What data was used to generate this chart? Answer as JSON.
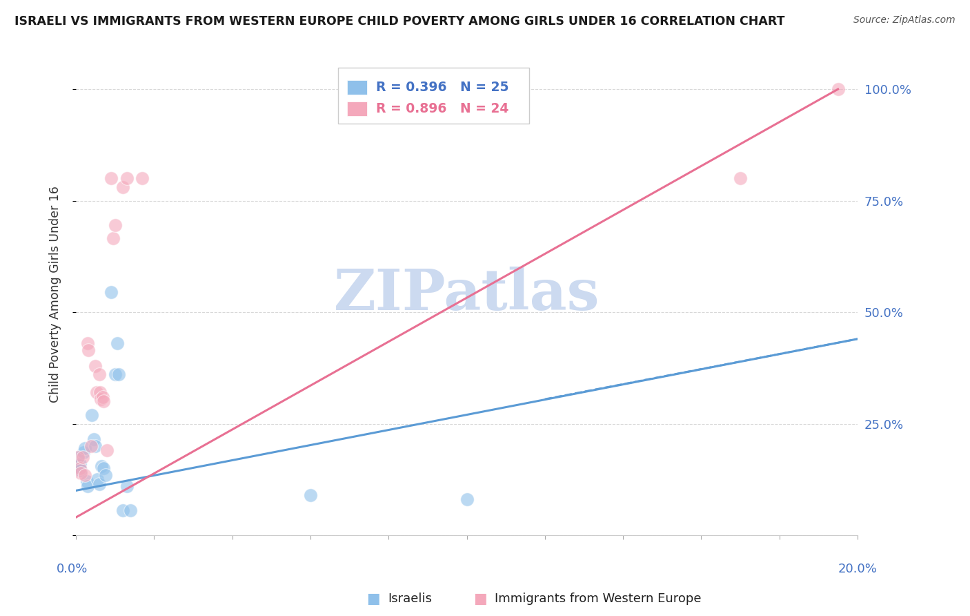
{
  "title": "ISRAELI VS IMMIGRANTS FROM WESTERN EUROPE CHILD POVERTY AMONG GIRLS UNDER 16 CORRELATION CHART",
  "source": "Source: ZipAtlas.com",
  "ylabel": "Child Poverty Among Girls Under 16",
  "y_ticks": [
    0.0,
    0.25,
    0.5,
    0.75,
    1.0
  ],
  "y_tick_labels": [
    "",
    "25.0%",
    "50.0%",
    "75.0%",
    "100.0%"
  ],
  "legend_blue_r": "R = 0.396",
  "legend_blue_n": "N = 25",
  "legend_pink_r": "R = 0.896",
  "legend_pink_n": "N = 24",
  "legend_label_blue": "Israelis",
  "legend_label_pink": "Immigrants from Western Europe",
  "watermark": "ZIPatlas",
  "blue_scatter": [
    [
      0.05,
      0.175
    ],
    [
      0.07,
      0.155
    ],
    [
      0.1,
      0.16
    ],
    [
      0.12,
      0.145
    ],
    [
      0.2,
      0.185
    ],
    [
      0.22,
      0.195
    ],
    [
      0.28,
      0.12
    ],
    [
      0.3,
      0.11
    ],
    [
      0.4,
      0.27
    ],
    [
      0.45,
      0.215
    ],
    [
      0.5,
      0.2
    ],
    [
      0.55,
      0.125
    ],
    [
      0.6,
      0.115
    ],
    [
      0.65,
      0.155
    ],
    [
      0.7,
      0.15
    ],
    [
      0.75,
      0.135
    ],
    [
      0.9,
      0.545
    ],
    [
      1.0,
      0.36
    ],
    [
      1.05,
      0.43
    ],
    [
      1.1,
      0.36
    ],
    [
      1.2,
      0.055
    ],
    [
      1.3,
      0.11
    ],
    [
      1.4,
      0.055
    ],
    [
      6.0,
      0.09
    ],
    [
      10.0,
      0.08
    ]
  ],
  "pink_scatter": [
    [
      0.05,
      0.175
    ],
    [
      0.1,
      0.15
    ],
    [
      0.12,
      0.14
    ],
    [
      0.18,
      0.175
    ],
    [
      0.22,
      0.135
    ],
    [
      0.3,
      0.43
    ],
    [
      0.32,
      0.415
    ],
    [
      0.38,
      0.2
    ],
    [
      0.5,
      0.38
    ],
    [
      0.52,
      0.32
    ],
    [
      0.6,
      0.36
    ],
    [
      0.62,
      0.32
    ],
    [
      0.64,
      0.305
    ],
    [
      0.68,
      0.31
    ],
    [
      0.7,
      0.3
    ],
    [
      0.8,
      0.19
    ],
    [
      0.9,
      0.8
    ],
    [
      0.95,
      0.665
    ],
    [
      1.0,
      0.695
    ],
    [
      1.2,
      0.78
    ],
    [
      1.3,
      0.8
    ],
    [
      1.7,
      0.8
    ],
    [
      17.0,
      0.8
    ],
    [
      19.5,
      1.0
    ]
  ],
  "blue_line_x": [
    0.0,
    20.0
  ],
  "blue_line_y": [
    0.1,
    0.44
  ],
  "pink_line_x": [
    0.0,
    19.5
  ],
  "pink_line_y": [
    0.04,
    1.0
  ],
  "xlim": [
    0.0,
    20.0
  ],
  "ylim": [
    0.0,
    1.08
  ],
  "bg_color": "#ffffff",
  "blue_color": "#8fc0ea",
  "blue_line_color": "#5b9bd5",
  "pink_color": "#f4a8bb",
  "pink_line_color": "#e87093",
  "title_color": "#1a1a1a",
  "axis_label_color": "#4472c4",
  "gridline_color": "#d8d8d8",
  "watermark_color": "#ccdaf0"
}
